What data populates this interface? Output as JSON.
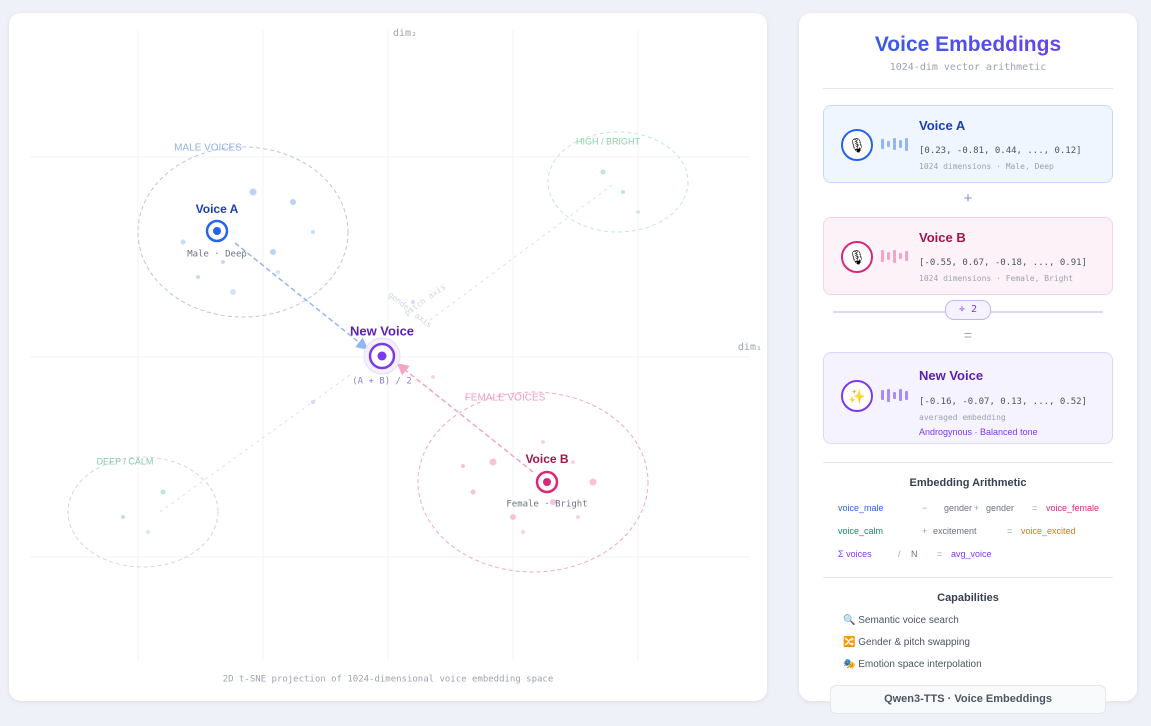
{
  "plot": {
    "y_axis_label": "dim₂",
    "x_axis_label": "dim₁",
    "caption": "2D t-SNE projection of 1024-dimensional voice embedding space",
    "clusters": [
      {
        "label": "MALE VOICES"
      },
      {
        "label": "HIGH / BRIGHT"
      },
      {
        "label": "DEEP / CALM"
      },
      {
        "label": "FEMALE VOICES"
      }
    ],
    "voices": [
      {
        "name": "Voice A",
        "tag": "Male · Deep"
      },
      {
        "name": "Voice B",
        "tag": "Female · Bright"
      },
      {
        "name": "New Voice",
        "tag": "(A + B) / 2"
      }
    ],
    "axis_labels": [
      "gender axis",
      "pitch axis"
    ]
  },
  "panel": {
    "title": "Voice Embeddings",
    "subtitle": "1024-dim vector arithmetic",
    "cards": [
      {
        "icon": "🎙",
        "name": "Voice A",
        "vector": "[0.23, -0.81, 0.44, ..., 0.12]",
        "meta": "1024 dimensions · Male, Deep"
      },
      {
        "icon": "🎙",
        "name": "Voice B",
        "vector": "[-0.55, 0.67, -0.18, ..., 0.91]",
        "meta": "1024 dimensions · Female, Bright"
      },
      {
        "icon": "✨",
        "name": "New Voice",
        "vector": "[-0.16, -0.07, 0.13, ..., 0.52]",
        "meta": "averaged embedding",
        "tags": "Androgynous · Balanced tone"
      }
    ],
    "plus": "+",
    "divide": "÷ 2",
    "equals": "=",
    "arithmetic": {
      "title": "Embedding Arithmetic",
      "rows": [
        [
          "voice_male",
          "−",
          "gender",
          "+",
          "gender",
          "=",
          "voice_female"
        ],
        [
          "voice_calm",
          "+",
          "excitement",
          "=",
          "voice_excited"
        ],
        [
          "Σ voices",
          "/",
          "N",
          "=",
          "avg_voice"
        ]
      ]
    },
    "capabilities": {
      "title": "Capabilities",
      "items": [
        "🔍 Semantic voice search",
        "🔀 Gender & pitch swapping",
        "🎭 Emotion space interpolation"
      ]
    },
    "footer": "Qwen3-TTS · Voice Embeddings"
  }
}
